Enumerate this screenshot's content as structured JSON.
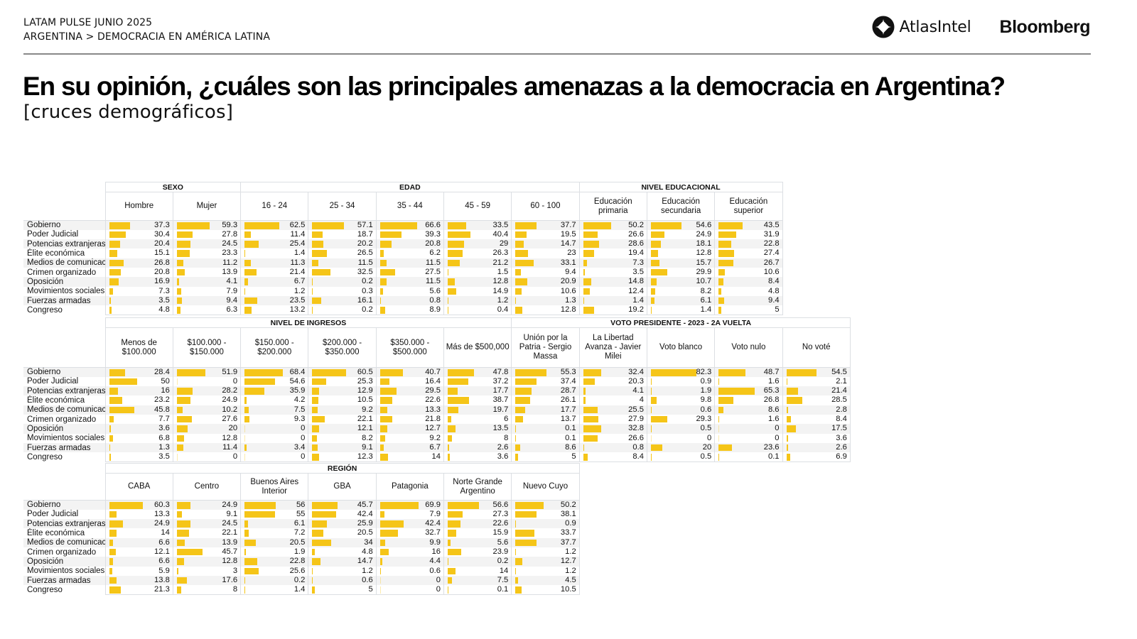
{
  "header": {
    "line1": "LATAM PULSE JUNIO 2025",
    "line2": "ARGENTINA > DEMOCRACIA EN AMÉRICA LATINA",
    "logo_atlas": "AtlasIntel",
    "logo_bloomberg": "Bloomberg"
  },
  "title": "En su opinión, ¿cuáles son las principales amenazas a la democracia en Argentina?",
  "subtitle": "[cruces demográficos]",
  "colors": {
    "bar": "#f5c518",
    "grid": "#dcdfe3",
    "row_alt": "#f3f3f3"
  },
  "chart_data": {
    "type": "table",
    "title": "En su opinión, ¿cuáles son las principales amenazas a la democracia en Argentina?",
    "subtitle": "[cruces demográficos]",
    "unit": "%",
    "row_labels": [
      "Gobierno",
      "Poder Judicial",
      "Potencias extranjeras",
      "Élite económica",
      "Medios de comunicac",
      "Crimen organizado",
      "Oposición",
      "Movimientos sociales",
      "Fuerzas armadas",
      "Congreso"
    ],
    "bar_max": 100,
    "tables": [
      {
        "groups": [
          {
            "name": "SEXO",
            "columns": [
              {
                "label": "Hombre",
                "values": [
                  37.3,
                  30.4,
                  20.4,
                  15.1,
                  26.8,
                  20.8,
                  16.9,
                  7.3,
                  3.5,
                  4.8
                ]
              },
              {
                "label": "Mujer",
                "values": [
                  59.3,
                  27.8,
                  24.5,
                  23.3,
                  11.2,
                  13.9,
                  4.1,
                  7.9,
                  9.4,
                  6.3
                ]
              }
            ]
          },
          {
            "name": "EDAD",
            "columns": [
              {
                "label": "16 - 24",
                "values": [
                  62.5,
                  11.4,
                  25.4,
                  1.4,
                  11.3,
                  21.4,
                  6.7,
                  1.2,
                  23.5,
                  13.2
                ]
              },
              {
                "label": "25 - 34",
                "values": [
                  57.1,
                  18.7,
                  20.2,
                  26.5,
                  11.5,
                  32.5,
                  0.2,
                  0.3,
                  16.1,
                  0.2
                ]
              },
              {
                "label": "35 - 44",
                "values": [
                  66.6,
                  39.3,
                  20.8,
                  6.2,
                  11.5,
                  27.5,
                  11.5,
                  5.6,
                  0.8,
                  8.9
                ]
              },
              {
                "label": "45 - 59",
                "values": [
                  33.5,
                  40.4,
                  29,
                  26.3,
                  21.2,
                  1.5,
                  12.8,
                  14.9,
                  1.2,
                  0.4
                ]
              },
              {
                "label": "60 - 100",
                "values": [
                  37.7,
                  19.5,
                  14.7,
                  23,
                  33.1,
                  9.4,
                  20.9,
                  10.6,
                  1.3,
                  12.8
                ]
              }
            ]
          },
          {
            "name": "NIVEL EDUCACIONAL",
            "columns": [
              {
                "label": "Educación primaria",
                "values": [
                  50.2,
                  26.6,
                  28.6,
                  19.4,
                  7.3,
                  3.5,
                  14.8,
                  12.4,
                  1.4,
                  19.2
                ]
              },
              {
                "label": "Educación secundaria",
                "values": [
                  54.6,
                  24.9,
                  18.1,
                  12.8,
                  15.7,
                  29.9,
                  10.7,
                  8.2,
                  6.1,
                  1.4
                ]
              },
              {
                "label": "Educación superior",
                "values": [
                  43.5,
                  31.9,
                  22.8,
                  27.4,
                  26.7,
                  10.6,
                  8.4,
                  4.8,
                  9.4,
                  5
                ]
              }
            ]
          }
        ]
      },
      {
        "groups": [
          {
            "name": "NIVEL DE INGRESOS",
            "columns": [
              {
                "label": "Menos de $100.000",
                "values": [
                  28.4,
                  50,
                  16,
                  23.2,
                  45.8,
                  7.7,
                  3.6,
                  6.8,
                  1.3,
                  3.5
                ]
              },
              {
                "label": "$100.000 - $150.000",
                "values": [
                  51.9,
                  0,
                  28.2,
                  24.9,
                  10.2,
                  27.6,
                  20,
                  12.8,
                  11.4,
                  0
                ]
              },
              {
                "label": "$150.000 - $200.000",
                "values": [
                  68.4,
                  54.6,
                  35.9,
                  4.2,
                  7.5,
                  9.3,
                  0,
                  0,
                  3.4,
                  0
                ]
              },
              {
                "label": "$200.000 - $350.000",
                "values": [
                  60.5,
                  25.3,
                  12.9,
                  10.5,
                  9.2,
                  22.1,
                  12.1,
                  8.2,
                  9.1,
                  12.3
                ]
              },
              {
                "label": "$350.000 - $500.000",
                "values": [
                  40.7,
                  16.4,
                  29.5,
                  22.6,
                  13.3,
                  21.8,
                  12.7,
                  9.2,
                  6.7,
                  14
                ]
              },
              {
                "label": "Más de $500,000",
                "values": [
                  47.8,
                  37.2,
                  17.7,
                  38.7,
                  19.7,
                  6,
                  13.5,
                  8,
                  2.6,
                  3.6
                ]
              }
            ]
          },
          {
            "name": "VOTO PRESIDENTE - 2023 - 2A VUELTA",
            "columns": [
              {
                "label": "Unión por la Patria - Sergio Massa",
                "values": [
                  55.3,
                  37.4,
                  28.7,
                  26.1,
                  17.7,
                  13.7,
                  0.1,
                  0.1,
                  8.6,
                  5
                ]
              },
              {
                "label": "La Libertad Avanza - Javier Milei",
                "values": [
                  32.4,
                  20.3,
                  4.1,
                  4,
                  25.5,
                  27.9,
                  32.8,
                  26.6,
                  0.8,
                  8.4
                ]
              },
              {
                "label": "Voto blanco",
                "values": [
                  82.3,
                  0.9,
                  1.9,
                  9.8,
                  0.6,
                  29.3,
                  0.5,
                  0,
                  20,
                  0.5
                ]
              },
              {
                "label": "Voto nulo",
                "values": [
                  48.7,
                  1.6,
                  65.3,
                  26.8,
                  8.6,
                  1.6,
                  0,
                  0,
                  23.6,
                  0.1
                ]
              },
              {
                "label": "No voté",
                "values": [
                  54.5,
                  2.1,
                  21.4,
                  28.5,
                  2.8,
                  8.4,
                  17.5,
                  3.6,
                  2.6,
                  6.9
                ]
              }
            ]
          }
        ]
      },
      {
        "groups": [
          {
            "name": "REGIÓN",
            "columns": [
              {
                "label": "CABA",
                "values": [
                  60.3,
                  13.3,
                  24.9,
                  14,
                  6.6,
                  12.1,
                  6.6,
                  5.9,
                  13.8,
                  21.3
                ]
              },
              {
                "label": "Centro",
                "values": [
                  24.9,
                  9.1,
                  24.5,
                  22.1,
                  13.9,
                  45.7,
                  12.8,
                  3,
                  17.6,
                  8
                ]
              },
              {
                "label": "Buenos Aires Interior",
                "values": [
                  56,
                  55,
                  6.1,
                  7.2,
                  20.5,
                  1.9,
                  22.8,
                  25.6,
                  0.2,
                  1.4
                ]
              },
              {
                "label": "GBA",
                "values": [
                  45.7,
                  42.4,
                  25.9,
                  20.5,
                  34,
                  4.8,
                  14.7,
                  1.2,
                  0.6,
                  5
                ]
              },
              {
                "label": "Patagonia",
                "values": [
                  69.9,
                  7.9,
                  42.4,
                  32.7,
                  9.9,
                  16,
                  4.4,
                  0.6,
                  0,
                  0
                ]
              },
              {
                "label": "Norte Grande Argentino",
                "values": [
                  56.6,
                  27.3,
                  22.6,
                  15.9,
                  5.6,
                  23.9,
                  0.2,
                  14,
                  7.5,
                  0.1
                ]
              },
              {
                "label": "Nuevo Cuyo",
                "values": [
                  50.2,
                  38.1,
                  0.9,
                  33.7,
                  37.7,
                  1.2,
                  12.7,
                  1.2,
                  4.5,
                  10.5
                ]
              }
            ]
          }
        ]
      }
    ]
  }
}
